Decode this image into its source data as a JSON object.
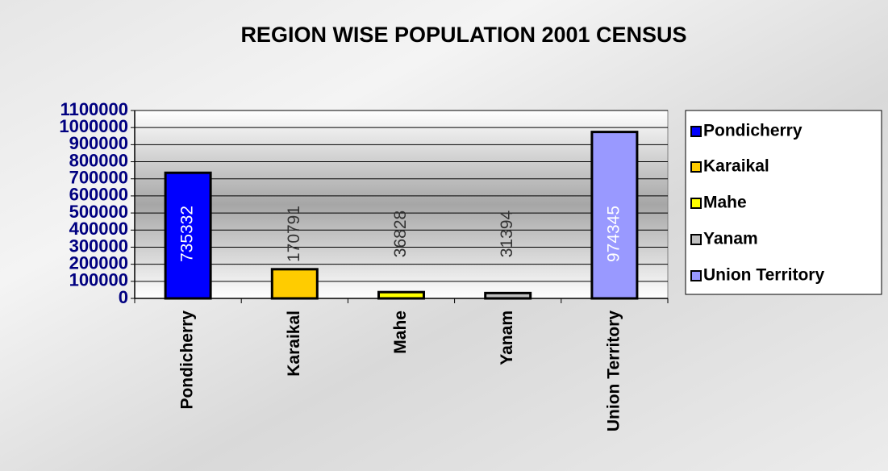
{
  "chart_data": {
    "type": "bar",
    "title": "REGION  WISE  POPULATION 2001 CENSUS",
    "categories": [
      "Pondicherry",
      "Karaikal",
      "Mahe",
      "Yanam",
      "Union Territory"
    ],
    "values": [
      735332,
      170791,
      36828,
      31394,
      974345
    ],
    "colors": [
      "#0000ff",
      "#ffcc00",
      "#ffff00",
      "#c0c0c0",
      "#9999ff"
    ],
    "ylim": [
      0,
      1100000
    ],
    "yticks": [
      0,
      100000,
      200000,
      300000,
      400000,
      500000,
      600000,
      700000,
      800000,
      900000,
      1000000,
      1100000
    ],
    "grid": true,
    "legend": "right"
  }
}
